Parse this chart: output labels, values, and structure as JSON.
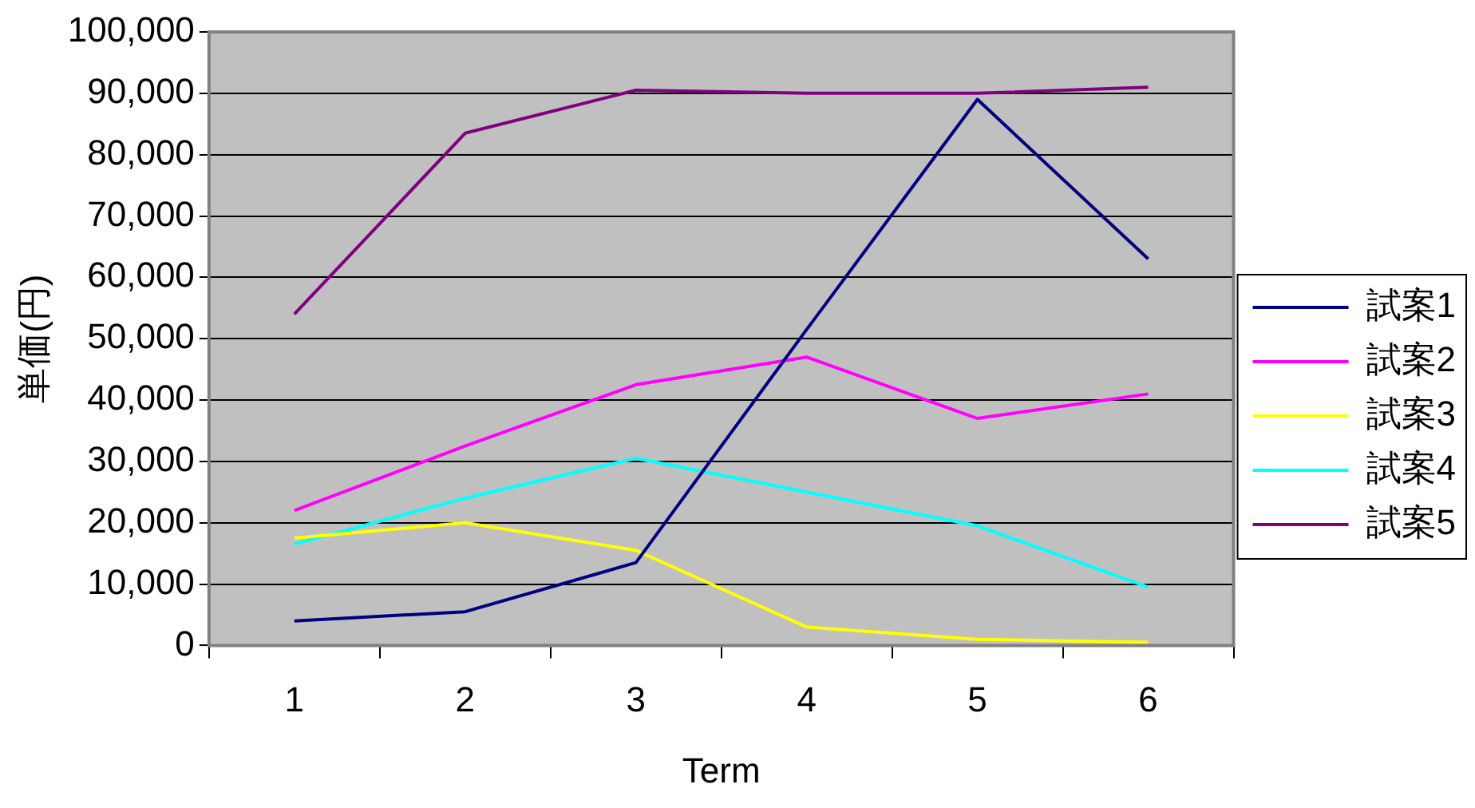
{
  "chart_data": {
    "type": "line",
    "xlabel": "Term",
    "ylabel": "単価(円)",
    "categories": [
      "1",
      "2",
      "3",
      "4",
      "5",
      "6"
    ],
    "series": [
      {
        "name": "試案1",
        "color": "#000080",
        "values": [
          4000,
          5500,
          13500,
          51500,
          89000,
          63000
        ]
      },
      {
        "name": "試案2",
        "color": "#ff00ff",
        "values": [
          22000,
          32500,
          42500,
          47000,
          37000,
          41000
        ]
      },
      {
        "name": "試案3",
        "color": "#ffff00",
        "values": [
          17500,
          20000,
          15500,
          3000,
          1000,
          500
        ]
      },
      {
        "name": "試案4",
        "color": "#00ffff",
        "values": [
          16500,
          24000,
          30500,
          25000,
          19500,
          9500
        ]
      },
      {
        "name": "試案5",
        "color": "#800080",
        "values": [
          54000,
          83500,
          90500,
          90000,
          90000,
          91000
        ]
      }
    ],
    "ylim": [
      0,
      100000
    ],
    "yticks": [
      0,
      {
        "value": 10000,
        "label": "10,000"
      },
      {
        "value": 20000,
        "label": "20,000"
      },
      {
        "value": 30000,
        "label": "30,000"
      },
      {
        "value": 40000,
        "label": "40,000"
      },
      {
        "value": 50000,
        "label": "50,000"
      },
      {
        "value": 60000,
        "label": "60,000"
      },
      {
        "value": 70000,
        "label": "70,000"
      },
      {
        "value": 80000,
        "label": "80,000"
      },
      {
        "value": 90000,
        "label": "90,000"
      },
      {
        "value": 100000,
        "label": "100,000"
      }
    ],
    "grid": "y",
    "legend": "right",
    "marker": "none",
    "line_style": "solid"
  }
}
